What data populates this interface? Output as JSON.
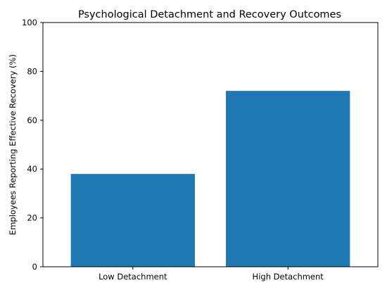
{
  "chart_data": {
    "type": "bar",
    "title": "Psychological Detachment and Recovery Outcomes",
    "xlabel": "",
    "ylabel": "Employees Reporting Effective Recovery (%)",
    "categories": [
      "Low Detachment",
      "High Detachment"
    ],
    "values": [
      38,
      72
    ],
    "ylim": [
      0,
      100
    ],
    "yticks": [
      0,
      20,
      40,
      60,
      80,
      100
    ],
    "bar_color": "#1f77b4",
    "grid": false,
    "legend": "none"
  }
}
